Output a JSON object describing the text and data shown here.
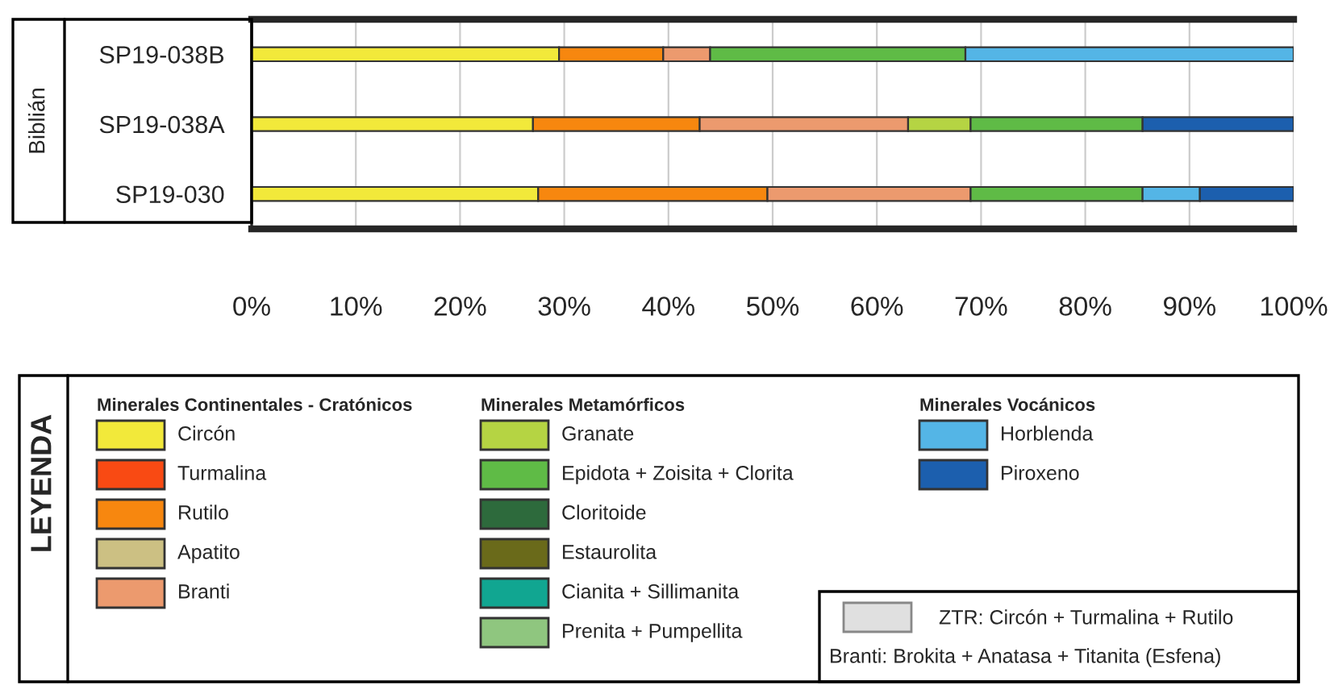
{
  "chart_data": {
    "type": "bar",
    "orientation": "horizontal",
    "stacked": true,
    "ylabel": "Biblián",
    "legend_title": "LEYENDA",
    "categories": [
      "SP19-038B",
      "SP19-038A",
      "SP19-030"
    ],
    "series": [
      {
        "name": "Circón",
        "color": "#f2e93a",
        "values": [
          29.5,
          27,
          27.5
        ]
      },
      {
        "name": "Turmalina",
        "color": "#f94a13",
        "values": [
          null,
          null,
          null
        ]
      },
      {
        "name": "Rutilo",
        "color": "#f7870f",
        "values": [
          10,
          16,
          22
        ]
      },
      {
        "name": "Apatito",
        "color": "#ccc083",
        "values": [
          null,
          null,
          null
        ]
      },
      {
        "name": "Branti",
        "color": "#ec9a6e",
        "values": [
          4.5,
          20,
          19.5
        ]
      },
      {
        "name": "Granate",
        "color": "#b5d443",
        "values": [
          null,
          6,
          null
        ]
      },
      {
        "name": "Epidota + Zoisita + Clorita",
        "color": "#5fbb46",
        "values": [
          24.5,
          16.5,
          16.5
        ]
      },
      {
        "name": "Cloritoide",
        "color": "#2d6a3c",
        "values": [
          null,
          null,
          null
        ]
      },
      {
        "name": "Estaurolita",
        "color": "#6a6a1a",
        "values": [
          null,
          null,
          null
        ]
      },
      {
        "name": "Cianita + Sillimanita",
        "color": "#11a691",
        "values": [
          null,
          null,
          null
        ]
      },
      {
        "name": "Prenita + Pumpellita",
        "color": "#8fc67f",
        "values": [
          null,
          null,
          null
        ]
      },
      {
        "name": "Horblenda",
        "color": "#54b5e6",
        "values": [
          31.5,
          null,
          5.5
        ]
      },
      {
        "name": "Piroxeno",
        "color": "#1c5fae",
        "values": [
          null,
          14.5,
          9
        ]
      },
      {
        "name": "ZTR: Circón + Turmalina + Rutilo",
        "color": "#e0e0e0",
        "values": [
          null,
          null,
          null
        ]
      }
    ],
    "xlim": [
      0,
      100
    ],
    "xticks": [
      {
        "value": 0,
        "label": "0%"
      },
      {
        "value": 10,
        "label": "10%"
      },
      {
        "value": 20,
        "label": "20%"
      },
      {
        "value": 30,
        "label": "30%"
      },
      {
        "value": 40,
        "label": "40%"
      },
      {
        "value": 50,
        "label": "50%"
      },
      {
        "value": 60,
        "label": "60%"
      },
      {
        "value": 70,
        "label": "70%"
      },
      {
        "value": 80,
        "label": "80%"
      },
      {
        "value": 90,
        "label": "90%"
      },
      {
        "value": 100,
        "label": "100%"
      }
    ],
    "grid": "x",
    "legend": "bottom",
    "annotations": [
      "Minerales Continentales - Cratónicos",
      "Minerales Metamórficos",
      "Minerales Vocánicos",
      "Branti: Brokita + Anatasa + Titanita (Esfena)"
    ]
  }
}
